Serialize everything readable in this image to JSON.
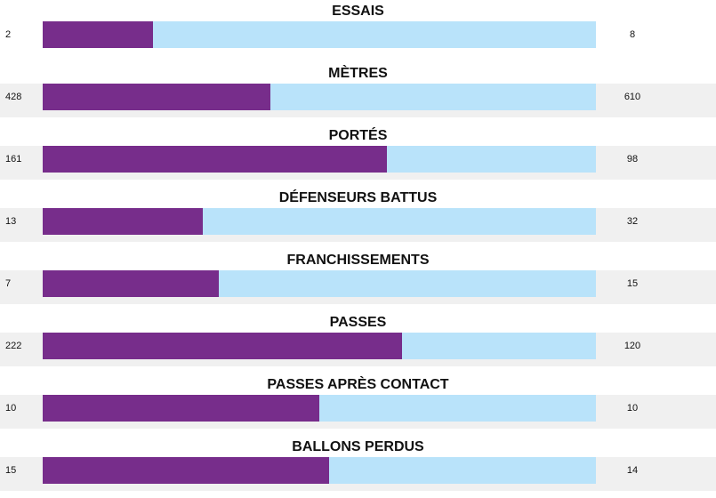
{
  "colors": {
    "left_bar": "#772d8b",
    "right_bar": "#b9e3fa",
    "row_band": "#f0f0f0"
  },
  "chart_data": {
    "type": "bar",
    "orientation": "horizontal-split",
    "stats": [
      {
        "label": "ESSAIS",
        "left": 2,
        "right": 8
      },
      {
        "label": "MÈTRES",
        "left": 428,
        "right": 610
      },
      {
        "label": "PORTÉS",
        "left": 161,
        "right": 98
      },
      {
        "label": "DÉFENSEURS BATTUS",
        "left": 13,
        "right": 32
      },
      {
        "label": "FRANCHISSEMENTS",
        "left": 7,
        "right": 15
      },
      {
        "label": "PASSES",
        "left": 222,
        "right": 120
      },
      {
        "label": "PASSES APRÈS CONTACT",
        "left": 10,
        "right": 10
      },
      {
        "label": "BALLONS PERDUS",
        "left": 15,
        "right": 14
      }
    ]
  }
}
